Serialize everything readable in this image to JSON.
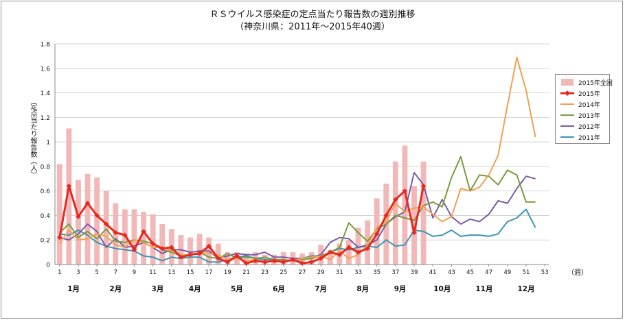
{
  "chart_data": {
    "type": "bar+line",
    "title": "ＲＳウイルス感染症の定点当たり報告数の週別推移",
    "subtitle": "（神奈川県：2011年～2015年40週）",
    "ylabel": "定点当たり報告数（人）",
    "xunit": "（週）",
    "ylim": [
      0,
      1.8
    ],
    "yticks": [
      "0",
      "0.2",
      "0.4",
      "0.6",
      "0.8",
      "1",
      "1.2",
      "1.4",
      "1.6",
      "1.8"
    ],
    "xlim": [
      0.5,
      53.5
    ],
    "xticks": [
      1,
      3,
      5,
      7,
      9,
      11,
      13,
      15,
      17,
      19,
      21,
      23,
      25,
      27,
      29,
      31,
      33,
      35,
      37,
      39,
      41,
      43,
      45,
      47,
      49,
      51,
      53
    ],
    "months": [
      {
        "label": "1月",
        "week": 2.5
      },
      {
        "label": "2月",
        "week": 7
      },
      {
        "label": "3月",
        "week": 11.5
      },
      {
        "label": "4月",
        "week": 15.5
      },
      {
        "label": "5月",
        "week": 20
      },
      {
        "label": "6月",
        "week": 24.5
      },
      {
        "label": "7月",
        "week": 29
      },
      {
        "label": "8月",
        "week": 33.5
      },
      {
        "label": "9月",
        "week": 37.5
      },
      {
        "label": "10月",
        "week": 42
      },
      {
        "label": "11月",
        "week": 46.5
      },
      {
        "label": "12月",
        "week": 51
      }
    ],
    "grid": true,
    "legend_position": "right",
    "bars": {
      "name": "2015年全国",
      "color": "#f2b8b8",
      "values": [
        0.82,
        1.11,
        0.69,
        0.74,
        0.71,
        0.6,
        0.5,
        0.45,
        0.45,
        0.43,
        0.41,
        0.33,
        0.29,
        0.24,
        0.22,
        0.25,
        0.22,
        0.17,
        0.1,
        0.1,
        0.09,
        0.1,
        0.08,
        0.08,
        0.1,
        0.1,
        0.09,
        0.1,
        0.16,
        0.12,
        0.17,
        0.2,
        0.3,
        0.36,
        0.54,
        0.66,
        0.84,
        0.97,
        0.64,
        0.84
      ]
    },
    "series": [
      {
        "name": "2011年",
        "color": "#3a94b4",
        "width": 2,
        "markers": false,
        "values": [
          0.25,
          0.24,
          0.28,
          0.24,
          0.18,
          0.15,
          0.13,
          0.12,
          0.11,
          0.07,
          0.06,
          0.03,
          0.06,
          0.05,
          0.06,
          0.06,
          0.02,
          0.02,
          0.04,
          0.06,
          0.07,
          0.05,
          0.04,
          0.04,
          0.03,
          0.03,
          0.05,
          0.07,
          0.07,
          0.1,
          0.13,
          0.12,
          0.14,
          0.15,
          0.14,
          0.2,
          0.15,
          0.16,
          0.28,
          0.27,
          0.23,
          0.24,
          0.28,
          0.23,
          0.24,
          0.24,
          0.23,
          0.25,
          0.35,
          0.38,
          0.45,
          0.3
        ]
      },
      {
        "name": "2012年",
        "color": "#7a5aa6",
        "width": 2,
        "markers": false,
        "values": [
          0.22,
          0.2,
          0.25,
          0.33,
          0.27,
          0.14,
          0.21,
          0.14,
          0.15,
          0.18,
          0.14,
          0.09,
          0.12,
          0.12,
          0.1,
          0.11,
          0.11,
          0.05,
          0.07,
          0.09,
          0.08,
          0.08,
          0.1,
          0.06,
          0.06,
          0.05,
          0.05,
          0.06,
          0.08,
          0.18,
          0.22,
          0.21,
          0.14,
          0.16,
          0.2,
          0.33,
          0.39,
          0.43,
          0.75,
          0.65,
          0.38,
          0.53,
          0.39,
          0.33,
          0.37,
          0.35,
          0.41,
          0.52,
          0.5,
          0.62,
          0.72,
          0.7
        ]
      },
      {
        "name": "2013年",
        "color": "#7a9a3c",
        "width": 2,
        "markers": false,
        "values": [
          0.26,
          0.33,
          0.22,
          0.27,
          0.21,
          0.29,
          0.19,
          0.18,
          0.2,
          0.19,
          0.17,
          0.12,
          0.1,
          0.07,
          0.08,
          0.1,
          0.06,
          0.05,
          0.09,
          0.05,
          0.06,
          0.05,
          0.06,
          0.04,
          0.04,
          0.03,
          0.04,
          0.05,
          0.07,
          0.1,
          0.14,
          0.34,
          0.26,
          0.19,
          0.29,
          0.33,
          0.4,
          0.38,
          0.36,
          0.48,
          0.51,
          0.47,
          0.71,
          0.88,
          0.6,
          0.73,
          0.72,
          0.65,
          0.77,
          0.73,
          0.51,
          0.51
        ]
      },
      {
        "name": "2014年",
        "color": "#f0a050",
        "width": 2,
        "markers": false,
        "values": [
          0.17,
          0.28,
          0.2,
          0.21,
          0.25,
          0.23,
          0.16,
          0.14,
          0.2,
          0.18,
          0.14,
          0.14,
          0.11,
          0.08,
          0.08,
          0.1,
          0.09,
          0.08,
          0.04,
          0.05,
          0.03,
          0.04,
          0.02,
          0.03,
          0.03,
          0.03,
          0.05,
          0.06,
          0.07,
          0.04,
          0.11,
          0.05,
          0.08,
          0.16,
          0.3,
          0.35,
          0.5,
          0.43,
          0.46,
          0.47,
          0.41,
          0.35,
          0.39,
          0.62,
          0.6,
          0.63,
          0.73,
          0.89,
          1.3,
          1.69,
          1.42,
          1.04
        ]
      },
      {
        "name": "2015年",
        "color": "#e8281e",
        "width": 3,
        "markers": true,
        "values": [
          0.22,
          0.64,
          0.39,
          0.5,
          0.4,
          0.33,
          0.26,
          0.24,
          0.12,
          0.27,
          0.17,
          0.13,
          0.14,
          0.06,
          0.08,
          0.09,
          0.15,
          0.05,
          0.02,
          0.07,
          0.01,
          0.03,
          0.02,
          0.03,
          0.02,
          0.04,
          0.01,
          0.02,
          0.05,
          0.1,
          0.08,
          0.14,
          0.1,
          0.13,
          0.25,
          0.4,
          0.53,
          0.6,
          0.26,
          0.64
        ]
      }
    ],
    "legend": [
      {
        "label": "2015年全国",
        "kind": "bar",
        "color": "#f2b8b8"
      },
      {
        "label": "2015年",
        "kind": "marker-line",
        "color": "#e8281e"
      },
      {
        "label": "2014年",
        "kind": "line",
        "color": "#f0a050"
      },
      {
        "label": "2013年",
        "kind": "line",
        "color": "#7a9a3c"
      },
      {
        "label": "2012年",
        "kind": "line",
        "color": "#7a5aa6"
      },
      {
        "label": "2011年",
        "kind": "line",
        "color": "#3a94b4"
      }
    ]
  }
}
